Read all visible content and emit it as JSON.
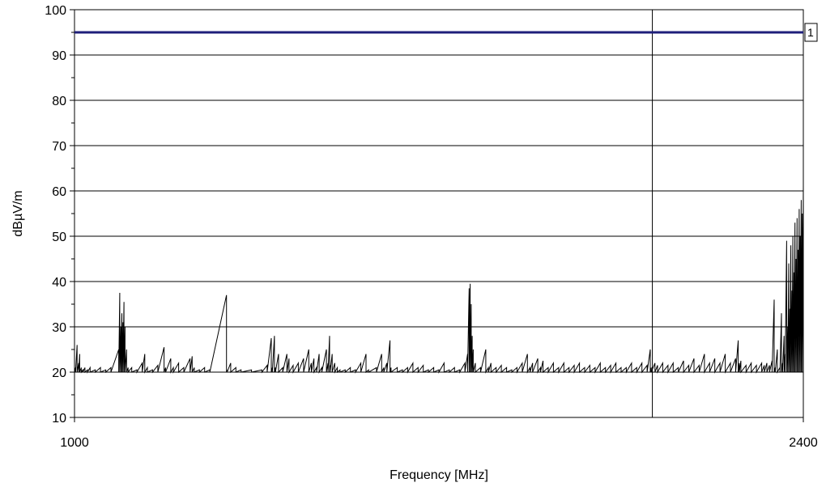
{
  "chart_data": {
    "type": "line",
    "xlabel": "Frequency [MHz]",
    "ylabel": "dBµV/m",
    "xlim": [
      1000,
      2400
    ],
    "ylim": [
      10,
      100
    ],
    "x_ticks": [
      1000,
      2400
    ],
    "y_ticks": [
      10,
      20,
      30,
      40,
      50,
      60,
      70,
      80,
      90,
      100
    ],
    "grid": true,
    "colors": {
      "limit_line": "#1f1f7a",
      "trace": "#000000",
      "grid": "#000000"
    },
    "limit_line": {
      "label": "1",
      "value": 95
    },
    "vertical_line": {
      "x": 2110
    },
    "series": [
      {
        "points": [
          [
            1000,
            28
          ],
          [
            1002,
            21
          ],
          [
            1005,
            26
          ],
          [
            1008,
            22
          ],
          [
            1010,
            24
          ],
          [
            1013,
            21
          ],
          [
            1016,
            20.5
          ],
          [
            1020,
            21
          ],
          [
            1025,
            20.5
          ],
          [
            1030,
            21
          ],
          [
            1040,
            20.5
          ],
          [
            1050,
            21
          ],
          [
            1060,
            20.5
          ],
          [
            1070,
            21
          ],
          [
            1085,
            25
          ],
          [
            1087,
            37.5
          ],
          [
            1089,
            30
          ],
          [
            1091,
            33
          ],
          [
            1093,
            31
          ],
          [
            1095,
            35.5
          ],
          [
            1097,
            30
          ],
          [
            1100,
            25
          ],
          [
            1103,
            21
          ],
          [
            1110,
            21
          ],
          [
            1120,
            20.5
          ],
          [
            1130,
            22
          ],
          [
            1135,
            24
          ],
          [
            1140,
            21
          ],
          [
            1150,
            20.5
          ],
          [
            1160,
            21.5
          ],
          [
            1172,
            25.5
          ],
          [
            1175,
            21
          ],
          [
            1185,
            23
          ],
          [
            1190,
            21
          ],
          [
            1200,
            22
          ],
          [
            1210,
            21
          ],
          [
            1222,
            23
          ],
          [
            1226,
            23.5
          ],
          [
            1230,
            21
          ],
          [
            1240,
            20.5
          ],
          [
            1250,
            21
          ],
          [
            1260,
            20.5
          ],
          [
            1292,
            37
          ],
          [
            1293,
            20.5
          ],
          [
            1300,
            22
          ],
          [
            1310,
            21
          ],
          [
            1320,
            20.5
          ],
          [
            1340,
            20.5
          ],
          [
            1360,
            20.5
          ],
          [
            1370,
            21.5
          ],
          [
            1378,
            27.5
          ],
          [
            1380,
            21
          ],
          [
            1384,
            28
          ],
          [
            1386,
            21
          ],
          [
            1392,
            24
          ],
          [
            1400,
            21
          ],
          [
            1408,
            24
          ],
          [
            1412,
            23
          ],
          [
            1420,
            21.5
          ],
          [
            1430,
            22
          ],
          [
            1440,
            23
          ],
          [
            1450,
            25
          ],
          [
            1455,
            22
          ],
          [
            1460,
            23
          ],
          [
            1465,
            21
          ],
          [
            1470,
            24
          ],
          [
            1475,
            21
          ],
          [
            1484,
            25
          ],
          [
            1487,
            22
          ],
          [
            1490,
            28
          ],
          [
            1491,
            21.5
          ],
          [
            1495,
            24
          ],
          [
            1500,
            22
          ],
          [
            1505,
            21
          ],
          [
            1510,
            20.5
          ],
          [
            1520,
            20.5
          ],
          [
            1530,
            21
          ],
          [
            1540,
            20.5
          ],
          [
            1550,
            22
          ],
          [
            1560,
            24
          ],
          [
            1565,
            20.5
          ],
          [
            1580,
            21
          ],
          [
            1590,
            24
          ],
          [
            1594,
            21
          ],
          [
            1600,
            22
          ],
          [
            1606,
            27
          ],
          [
            1608,
            21
          ],
          [
            1620,
            21
          ],
          [
            1630,
            20.5
          ],
          [
            1640,
            21
          ],
          [
            1650,
            22
          ],
          [
            1660,
            21
          ],
          [
            1670,
            21.5
          ],
          [
            1680,
            20.5
          ],
          [
            1690,
            21
          ],
          [
            1700,
            20.5
          ],
          [
            1710,
            22
          ],
          [
            1720,
            20.5
          ],
          [
            1730,
            21
          ],
          [
            1740,
            20.5
          ],
          [
            1750,
            22
          ],
          [
            1755,
            24
          ],
          [
            1758,
            38.5
          ],
          [
            1760,
            39.5
          ],
          [
            1762,
            35
          ],
          [
            1764,
            28
          ],
          [
            1766,
            25
          ],
          [
            1770,
            22
          ],
          [
            1780,
            21
          ],
          [
            1790,
            25
          ],
          [
            1795,
            21
          ],
          [
            1800,
            22
          ],
          [
            1810,
            21
          ],
          [
            1820,
            21.5
          ],
          [
            1830,
            21
          ],
          [
            1840,
            20.5
          ],
          [
            1850,
            21
          ],
          [
            1860,
            22
          ],
          [
            1870,
            24
          ],
          [
            1875,
            21
          ],
          [
            1880,
            22
          ],
          [
            1890,
            23
          ],
          [
            1895,
            21
          ],
          [
            1900,
            22.5
          ],
          [
            1910,
            21
          ],
          [
            1920,
            22
          ],
          [
            1930,
            21
          ],
          [
            1940,
            22
          ],
          [
            1950,
            21
          ],
          [
            1960,
            21.5
          ],
          [
            1970,
            22
          ],
          [
            1980,
            21
          ],
          [
            1990,
            21.5
          ],
          [
            2000,
            21
          ],
          [
            2010,
            22
          ],
          [
            2020,
            21
          ],
          [
            2030,
            21.5
          ],
          [
            2040,
            22
          ],
          [
            2050,
            21
          ],
          [
            2060,
            21
          ],
          [
            2070,
            22
          ],
          [
            2080,
            21
          ],
          [
            2090,
            22
          ],
          [
            2100,
            21.5
          ],
          [
            2106,
            25
          ],
          [
            2108,
            21
          ],
          [
            2115,
            22
          ],
          [
            2120,
            21.5
          ],
          [
            2130,
            22
          ],
          [
            2140,
            21.5
          ],
          [
            2150,
            22
          ],
          [
            2160,
            21
          ],
          [
            2170,
            22.5
          ],
          [
            2180,
            21.5
          ],
          [
            2190,
            23
          ],
          [
            2200,
            21.5
          ],
          [
            2210,
            24
          ],
          [
            2220,
            22
          ],
          [
            2230,
            23
          ],
          [
            2240,
            22
          ],
          [
            2250,
            24
          ],
          [
            2260,
            22
          ],
          [
            2270,
            23
          ],
          [
            2275,
            27
          ],
          [
            2277,
            22
          ],
          [
            2280,
            22.5
          ],
          [
            2290,
            21.5
          ],
          [
            2300,
            22
          ],
          [
            2310,
            21.5
          ],
          [
            2320,
            22
          ],
          [
            2325,
            21.5
          ],
          [
            2330,
            22
          ],
          [
            2335,
            21.5
          ],
          [
            2340,
            22.5
          ],
          [
            2344,
            36
          ],
          [
            2346,
            21
          ],
          [
            2350,
            25
          ],
          [
            2355,
            21
          ],
          [
            2358,
            33
          ],
          [
            2360,
            22
          ],
          [
            2363,
            28
          ],
          [
            2365,
            24
          ],
          [
            2368,
            49
          ],
          [
            2370,
            30
          ],
          [
            2372,
            44
          ],
          [
            2374,
            34
          ],
          [
            2376,
            48
          ],
          [
            2378,
            38
          ],
          [
            2380,
            50
          ],
          [
            2382,
            42
          ],
          [
            2384,
            53
          ],
          [
            2386,
            45
          ],
          [
            2388,
            54
          ],
          [
            2390,
            47
          ],
          [
            2392,
            56
          ],
          [
            2394,
            50
          ],
          [
            2396,
            58
          ],
          [
            2398,
            55
          ],
          [
            2400,
            61
          ]
        ]
      }
    ]
  }
}
